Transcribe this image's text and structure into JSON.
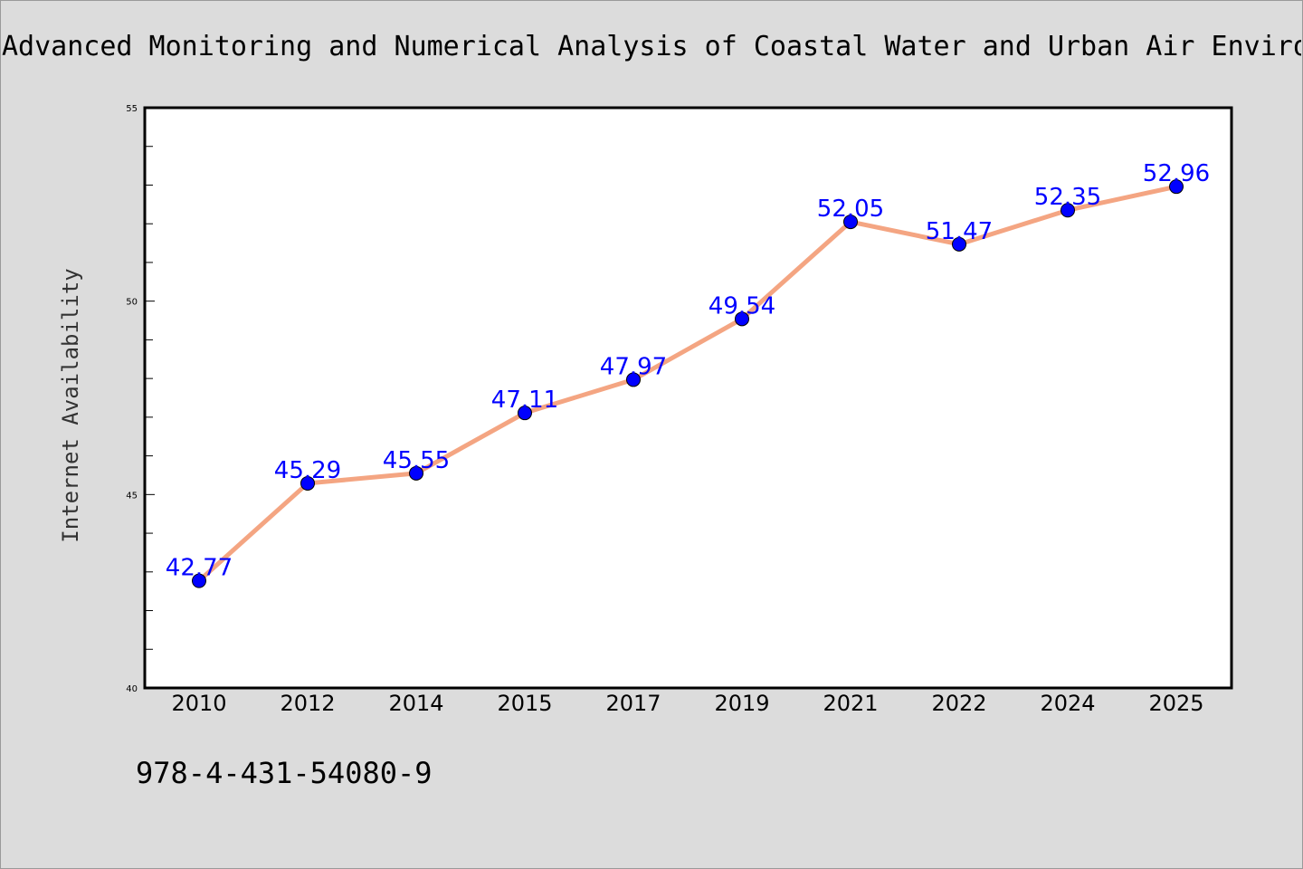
{
  "header": {
    "title": "Advanced Monitoring and Numerical Analysis of Coastal Water and Urban Air Enviro"
  },
  "footer": {
    "code": "978-4-431-54080-9"
  },
  "chart_data": {
    "type": "line",
    "title": "Advanced Monitoring and Numerical Analysis of Coastal Water and Urban Air Enviro",
    "xlabel": "",
    "ylabel": "Internet Availability",
    "categories": [
      "2010",
      "2012",
      "2014",
      "2015",
      "2017",
      "2019",
      "2021",
      "2022",
      "2024",
      "2025"
    ],
    "series": [
      {
        "values": [
          42.77,
          45.29,
          45.55,
          47.11,
          47.97,
          49.54,
          52.05,
          51.47,
          52.35,
          52.96
        ],
        "data_labels": [
          "42.77",
          "45.29",
          "45.55",
          "47.11",
          "47.97",
          "49.54",
          "52.05",
          "51.47",
          "52.35",
          "52.96"
        ],
        "line_color": "#f4a582",
        "marker_color": "#0000ff"
      }
    ],
    "ylim": [
      40,
      55
    ],
    "yticks": [
      "40",
      "45",
      "50",
      "55"
    ],
    "grid": false,
    "legend": "none",
    "colors": {
      "background": "#dcdcdc",
      "plot_background": "#ffffff",
      "line": "#f4a582",
      "marker": "#0000ff",
      "data_label": "#0000ff"
    }
  }
}
